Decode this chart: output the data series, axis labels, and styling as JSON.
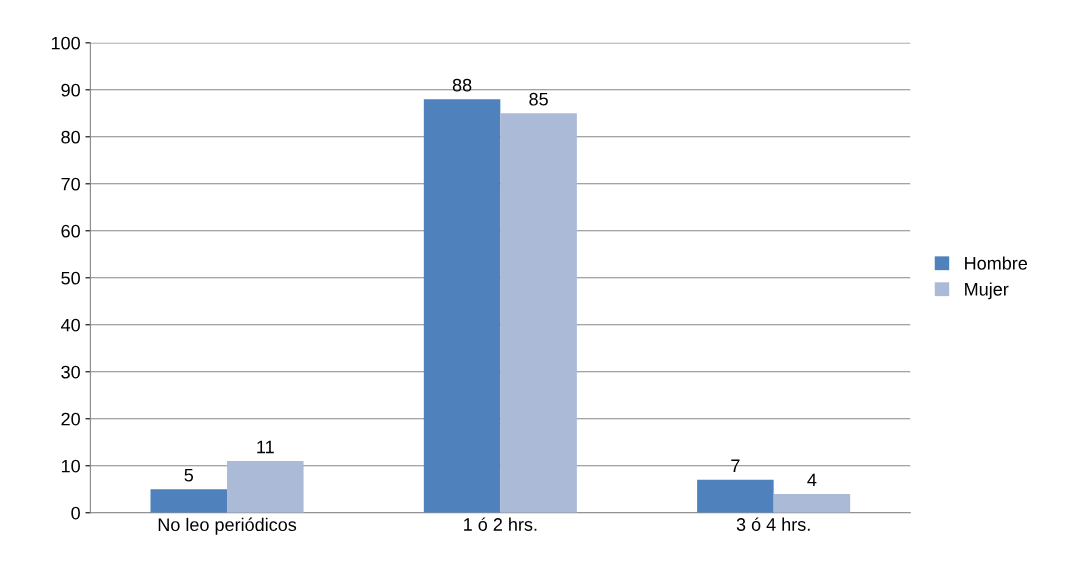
{
  "chart_data": {
    "type": "bar",
    "categories": [
      "No leo periódicos",
      "1 ó 2 hrs.",
      "3 ó 4 hrs."
    ],
    "series": [
      {
        "name": "Hombre",
        "color": "#4f81bd",
        "values": [
          5,
          88,
          7
        ]
      },
      {
        "name": "Mujer",
        "color": "#aabad7",
        "values": [
          11,
          85,
          4
        ]
      }
    ],
    "ylim": [
      0,
      100
    ],
    "yticks": [
      0,
      10,
      20,
      30,
      40,
      50,
      60,
      70,
      80,
      90,
      100
    ],
    "grid": "y",
    "legend": "right",
    "data_labels": true
  }
}
